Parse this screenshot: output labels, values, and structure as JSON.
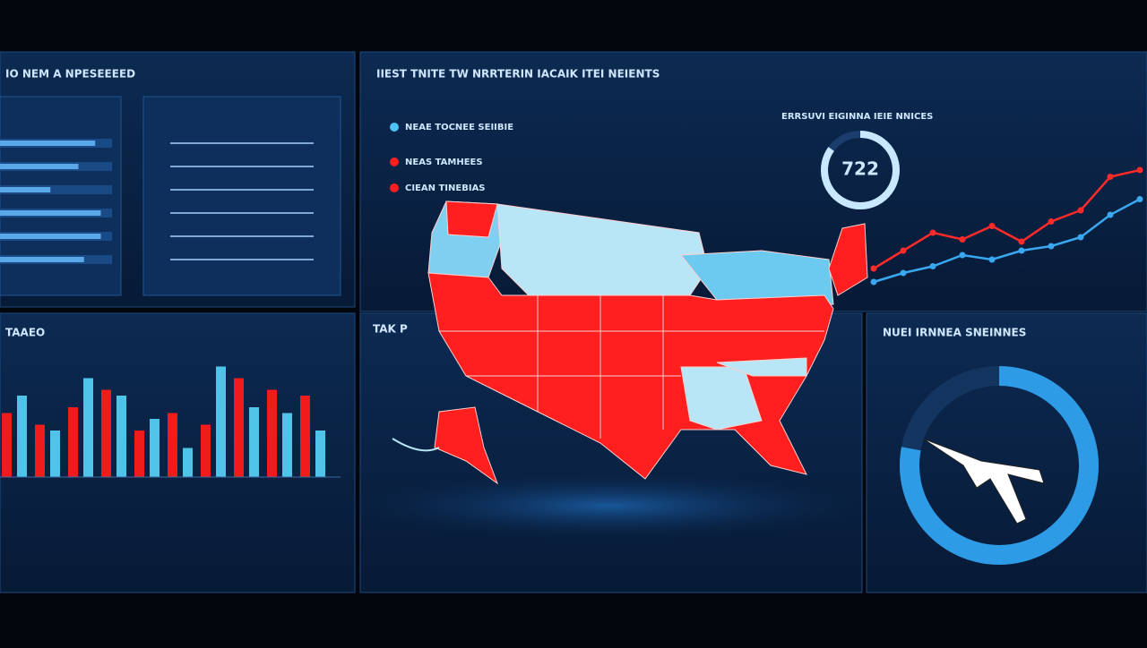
{
  "header": {
    "left_title": "IO NEM A NPESEEEED",
    "center_title": "IIEST TNITE TW NRRTERIN IACAIK ITEI NEIENTS",
    "bars_title": "TAAEO",
    "ring_title": "NUEI IRNNEA SNEINNES",
    "map_note": "TAK P"
  },
  "legend": [
    {
      "label": "NEAE TOCNEE SEIIBIE",
      "color": "#4fc3f7"
    },
    {
      "label": "NEAS TAMHEES",
      "color": "#ff1e1e"
    },
    {
      "label": "CIEAN TINEBIAS",
      "color": "#ff1e1e"
    }
  ],
  "progress": {
    "values": [
      85,
      70,
      45,
      90,
      90,
      75
    ]
  },
  "bars": {
    "series": [
      {
        "color": "#f01c1c",
        "values": [
          55,
          45,
          60,
          75,
          40,
          55,
          45,
          85,
          75,
          70
        ]
      },
      {
        "color": "#4fc3e8",
        "values": [
          70,
          40,
          85,
          70,
          50,
          25,
          95,
          60,
          55,
          40
        ]
      }
    ]
  },
  "trend": {
    "title": "ERRSUVI EIGINNA IEIE NNICES",
    "series": [
      {
        "color": "#ff2a2a",
        "values": [
          14,
          22,
          30,
          27,
          33,
          26,
          35,
          40,
          55,
          58
        ]
      },
      {
        "color": "#3aa8f0",
        "values": [
          8,
          12,
          15,
          20,
          18,
          22,
          24,
          28,
          38,
          45
        ]
      }
    ]
  },
  "gauge": {
    "label": "722",
    "value": 85
  },
  "ring": {
    "value": 78
  }
}
